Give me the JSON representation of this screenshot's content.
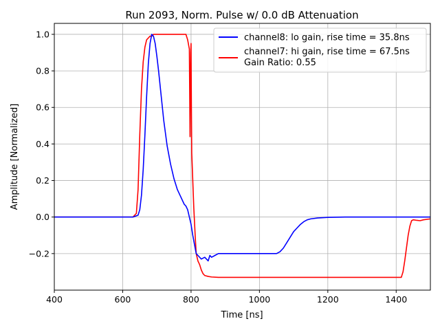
{
  "chart_data": {
    "type": "line",
    "title": "Run 2093, Norm. Pulse w/ 0.0 dB Attenuation",
    "xlabel": "Time [ns]",
    "ylabel": "Amplitude [Normalized]",
    "xlim": [
      400,
      1500
    ],
    "ylim": [
      -0.4,
      1.06
    ],
    "xticks": [
      400,
      600,
      800,
      1000,
      1200,
      1400
    ],
    "yticks": [
      -0.2,
      0.0,
      0.2,
      0.4,
      0.6,
      0.8,
      1.0
    ],
    "xtick_labels": [
      "400",
      "600",
      "800",
      "1000",
      "1200",
      "1400"
    ],
    "ytick_labels": [
      "−0.2",
      "0.0",
      "0.2",
      "0.4",
      "0.6",
      "0.8",
      "1.0"
    ],
    "grid": true,
    "legend_position": "top-right",
    "series": [
      {
        "name": "channel8: lo gain, rise time = 35.8ns",
        "color": "#0000ff",
        "x": [
          400,
          630,
          645,
          650,
          655,
          660,
          665,
          670,
          675,
          680,
          685,
          690,
          695,
          700,
          705,
          710,
          715,
          720,
          725,
          730,
          740,
          750,
          760,
          770,
          780,
          785,
          790,
          795,
          800,
          805,
          810,
          815,
          820,
          830,
          840,
          850,
          855,
          860,
          870,
          880,
          900,
          950,
          1000,
          1050,
          1060,
          1070,
          1080,
          1090,
          1100,
          1110,
          1120,
          1130,
          1140,
          1150,
          1170,
          1200,
          1250,
          1300,
          1400,
          1500
        ],
        "y": [
          0.0,
          0.0,
          0.01,
          0.04,
          0.12,
          0.26,
          0.45,
          0.66,
          0.84,
          0.95,
          1.0,
          0.99,
          0.95,
          0.88,
          0.8,
          0.71,
          0.62,
          0.53,
          0.46,
          0.39,
          0.29,
          0.21,
          0.15,
          0.11,
          0.07,
          0.06,
          0.04,
          0.0,
          -0.04,
          -0.1,
          -0.15,
          -0.2,
          -0.21,
          -0.23,
          -0.22,
          -0.24,
          -0.21,
          -0.22,
          -0.21,
          -0.2,
          -0.2,
          -0.2,
          -0.2,
          -0.2,
          -0.19,
          -0.17,
          -0.14,
          -0.11,
          -0.08,
          -0.06,
          -0.04,
          -0.025,
          -0.015,
          -0.01,
          -0.005,
          -0.002,
          0.0,
          0.0,
          0.0,
          0.0
        ]
      },
      {
        "name": "channel7: hi gain, rise time = 67.5ns",
        "extra_label": "Gain Ratio: 0.55",
        "color": "#ff0000",
        "x": [
          400,
          630,
          640,
          645,
          650,
          655,
          660,
          665,
          670,
          675,
          680,
          685,
          690,
          700,
          720,
          750,
          785,
          790,
          795,
          797,
          798,
          799,
          800,
          801,
          802,
          805,
          808,
          812,
          815,
          820,
          825,
          830,
          835,
          840,
          850,
          860,
          880,
          900,
          1000,
          1200,
          1400,
          1415,
          1420,
          1425,
          1430,
          1435,
          1440,
          1445,
          1450,
          1460,
          1470,
          1480,
          1500
        ],
        "y": [
          0.0,
          0.0,
          0.02,
          0.15,
          0.45,
          0.7,
          0.85,
          0.93,
          0.97,
          0.98,
          0.99,
          0.99,
          1.0,
          1.0,
          1.0,
          1.0,
          1.0,
          0.97,
          0.92,
          0.44,
          0.7,
          0.9,
          0.95,
          0.6,
          0.35,
          0.2,
          0.05,
          -0.1,
          -0.2,
          -0.24,
          -0.26,
          -0.29,
          -0.31,
          -0.32,
          -0.325,
          -0.328,
          -0.33,
          -0.33,
          -0.33,
          -0.33,
          -0.33,
          -0.33,
          -0.3,
          -0.24,
          -0.17,
          -0.1,
          -0.05,
          -0.02,
          -0.015,
          -0.018,
          -0.02,
          -0.015,
          -0.01
        ]
      }
    ]
  }
}
